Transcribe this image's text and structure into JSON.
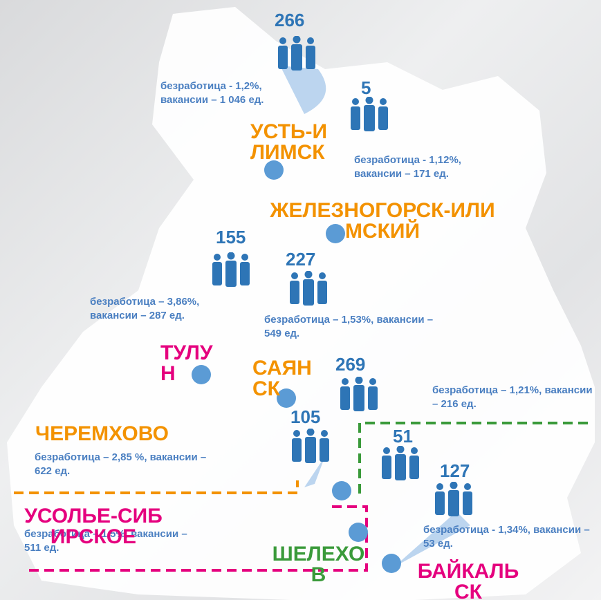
{
  "counts": [
    "266",
    "5",
    "155",
    "227",
    "269",
    "105",
    "51",
    "127"
  ],
  "stats": [
    "безработица - 1,2%, вакансии – 1 046 ед.",
    "безработица - 1,12%, вакансии – 171 ед.",
    "безработица – 3,86%, вакансии – 287 ед.",
    "безработица – 1,53%, вакансии – 549 ед.",
    "безработица – 1,21%, вакансии – 216 ед.",
    "безработица – 2,85 %, вакансии – 622 ед.",
    "безработица – 1,5%, вакансии – 511 ед.",
    "безработица - 1,34%, вакансии – 53 ед."
  ],
  "cities": [
    "УСТЬ-ИЛИМСК",
    "ЖЕЛЕЗНОГОРСК-ИЛИМСКИЙ",
    "ТУЛУН",
    "САЯНСК",
    "ЧЕРЕМХОВО",
    "УСОЛЬЕ-СИБИРСКОЕ",
    "ШЕЛЕХОВ",
    "БАЙКАЛЬСК"
  ]
}
